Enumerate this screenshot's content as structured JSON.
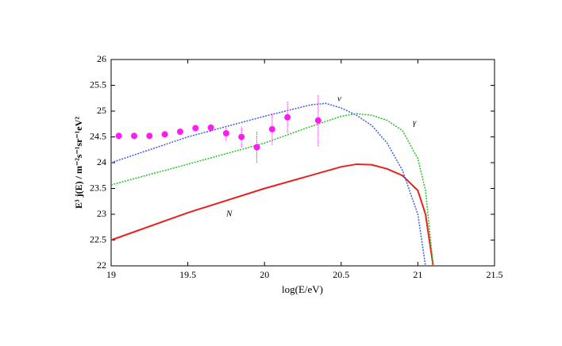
{
  "chart_data": {
    "type": "line",
    "xlabel": "log(E/eV)",
    "ylabel": "E³ j(E) / m⁻²s⁻¹sr⁻¹eV²",
    "xlim": [
      19,
      21.5
    ],
    "xticks": [
      19,
      19.5,
      20,
      20.5,
      21,
      21.5
    ],
    "ylim": [
      22,
      26
    ],
    "yticks": [
      22,
      22.5,
      23,
      23.5,
      24,
      24.5,
      25,
      25.5,
      26
    ],
    "series": [
      {
        "name": "N",
        "color": "#e8221c",
        "dashed": false,
        "x": [
          19,
          19.5,
          20,
          20.5,
          20.6,
          20.7,
          20.8,
          20.9,
          21.0,
          21.05,
          21.1
        ],
        "values": [
          22.5,
          23.03,
          23.5,
          23.92,
          23.97,
          23.96,
          23.88,
          23.75,
          23.46,
          23.0,
          22.0
        ]
      },
      {
        "name": "γ",
        "color": "#22c422",
        "dashed": true,
        "x": [
          19,
          19.5,
          20,
          20.3,
          20.5,
          20.6,
          20.7,
          20.8,
          20.9,
          21.0,
          21.05,
          21.1
        ],
        "values": [
          23.57,
          23.97,
          24.38,
          24.7,
          24.9,
          24.95,
          24.92,
          24.82,
          24.62,
          24.08,
          23.46,
          22.0
        ]
      },
      {
        "name": "ν",
        "color": "#3a5cf0",
        "dashed": true,
        "x": [
          19,
          19.5,
          20,
          20.3,
          20.4,
          20.5,
          20.6,
          20.7,
          20.8,
          20.9,
          21.0,
          21.05
        ],
        "values": [
          24.0,
          24.5,
          24.9,
          25.12,
          25.15,
          25.06,
          24.92,
          24.72,
          24.38,
          23.85,
          23.0,
          22.0
        ]
      }
    ],
    "points": {
      "type": "scatter",
      "color": "#ff1cf0",
      "x": [
        19.05,
        19.15,
        19.25,
        19.35,
        19.45,
        19.55,
        19.65,
        19.75,
        19.85,
        19.95,
        20.05,
        20.15,
        20.35
      ],
      "values": [
        24.52,
        24.52,
        24.52,
        24.55,
        24.6,
        24.67,
        24.68,
        24.57,
        24.5,
        24.3,
        24.65,
        24.88,
        24.82
      ],
      "errors": [
        0.03,
        0.03,
        0.03,
        0.04,
        0.05,
        0.06,
        0.08,
        0.15,
        0.2,
        0.3,
        0.3,
        0.3,
        0.5
      ]
    }
  }
}
